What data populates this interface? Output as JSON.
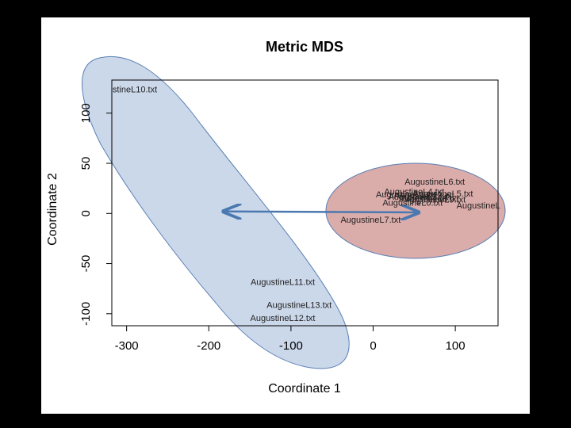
{
  "chart_data": {
    "type": "scatter",
    "title": "Metric MDS",
    "xlabel": "Coordinate 1",
    "ylabel": "Coordinate 2",
    "xlim": [
      -318,
      152
    ],
    "ylim": [
      -112,
      133
    ],
    "xticks": [
      -300,
      -200,
      -100,
      0,
      100
    ],
    "yticks": [
      -100,
      -50,
      0,
      50,
      100
    ],
    "grid": false,
    "points": [
      {
        "label": "stineL10.txt",
        "x": -290,
        "y": 124
      },
      {
        "label": "AugustineL6.txt",
        "x": 75,
        "y": 32
      },
      {
        "label": "AugustineL4.txt",
        "x": 50,
        "y": 22
      },
      {
        "label": "AugustineL1.txt",
        "x": 40,
        "y": 19
      },
      {
        "label": "AugustineL2.txt",
        "x": 55,
        "y": 17
      },
      {
        "label": "AugustineL3.txt",
        "x": 62,
        "y": 18
      },
      {
        "label": "AugustineL5.txt",
        "x": 85,
        "y": 20
      },
      {
        "label": "AugustineL8.txt",
        "x": 68,
        "y": 15
      },
      {
        "label": "AugustineL9.txt",
        "x": 76,
        "y": 14
      },
      {
        "label": "AugustineL0.txt",
        "x": 48,
        "y": 11
      },
      {
        "label": "AugustineL",
        "x": 128,
        "y": 8
      },
      {
        "label": "AugustineL7.txt",
        "x": -3,
        "y": -6
      },
      {
        "label": "AugustineL11.txt",
        "x": -110,
        "y": -68
      },
      {
        "label": "AugustineL13.txt",
        "x": -90,
        "y": -91
      },
      {
        "label": "AugustineL12.txt",
        "x": -110,
        "y": -104
      }
    ],
    "arrow": {
      "from": [
        -182,
        2
      ],
      "to": [
        55,
        1
      ],
      "color": "#4a78b0"
    },
    "clusters": [
      {
        "fill": "#c5d4e8",
        "stroke": "#5b7fb5"
      },
      {
        "fill": "#d6a3a1",
        "stroke": "#5b7fb5"
      }
    ]
  }
}
